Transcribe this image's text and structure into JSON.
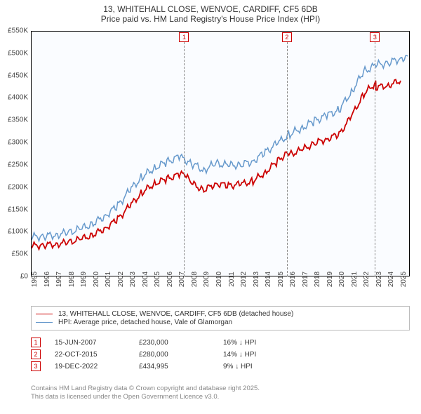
{
  "title": {
    "line1": "13, WHITEHALL CLOSE, WENVOE, CARDIFF, CF5 6DB",
    "line2": "Price paid vs. HM Land Registry's House Price Index (HPI)"
  },
  "chart": {
    "type": "line",
    "background_color": "#fafcff",
    "grid_color": "#b8b8b8",
    "border_color": "#000000",
    "ylim": [
      0,
      550000
    ],
    "ytick_step": 50000,
    "ytick_labels": [
      "£0",
      "£50K",
      "£100K",
      "£150K",
      "£200K",
      "£250K",
      "£300K",
      "£350K",
      "£400K",
      "£450K",
      "£500K",
      "£550K"
    ],
    "x_start_year": 1995,
    "x_end_year": 2025.8,
    "xtick_labels": [
      "1995",
      "1996",
      "1997",
      "1998",
      "1999",
      "2000",
      "2001",
      "2002",
      "2003",
      "2004",
      "2005",
      "2006",
      "2007",
      "2008",
      "2009",
      "2010",
      "2011",
      "2012",
      "2013",
      "2014",
      "2015",
      "2016",
      "2017",
      "2018",
      "2019",
      "2020",
      "2021",
      "2022",
      "2023",
      "2024",
      "2025"
    ],
    "series": [
      {
        "name": "price_paid",
        "color": "#cc0000",
        "width": 1.8,
        "label": "13, WHITEHALL CLOSE, WENVOE, CARDIFF, CF5 6DB (detached house)",
        "data": [
          [
            1995,
            70000
          ],
          [
            1996,
            72000
          ],
          [
            1997,
            74000
          ],
          [
            1998,
            78000
          ],
          [
            1999,
            85000
          ],
          [
            2000,
            95000
          ],
          [
            2001,
            110000
          ],
          [
            2002,
            130000
          ],
          [
            2003,
            160000
          ],
          [
            2004,
            190000
          ],
          [
            2005,
            210000
          ],
          [
            2006,
            220000
          ],
          [
            2007,
            230000
          ],
          [
            2007.46,
            230000
          ],
          [
            2008,
            210000
          ],
          [
            2009,
            195000
          ],
          [
            2010,
            210000
          ],
          [
            2011,
            205000
          ],
          [
            2012,
            208000
          ],
          [
            2013,
            215000
          ],
          [
            2014,
            235000
          ],
          [
            2015,
            260000
          ],
          [
            2015.81,
            280000
          ],
          [
            2016,
            275000
          ],
          [
            2017,
            285000
          ],
          [
            2018,
            300000
          ],
          [
            2019,
            310000
          ],
          [
            2020,
            320000
          ],
          [
            2021,
            360000
          ],
          [
            2022,
            410000
          ],
          [
            2022.97,
            434995
          ],
          [
            2023,
            425000
          ],
          [
            2024,
            430000
          ],
          [
            2025,
            440000
          ]
        ]
      },
      {
        "name": "hpi",
        "color": "#6699cc",
        "width": 1.5,
        "label": "HPI: Average price, detached house, Vale of Glamorgan",
        "data": [
          [
            1995,
            90000
          ],
          [
            1996,
            92000
          ],
          [
            1997,
            95000
          ],
          [
            1998,
            100000
          ],
          [
            1999,
            108000
          ],
          [
            2000,
            120000
          ],
          [
            2001,
            138000
          ],
          [
            2002,
            160000
          ],
          [
            2003,
            195000
          ],
          [
            2004,
            225000
          ],
          [
            2005,
            245000
          ],
          [
            2006,
            258000
          ],
          [
            2007,
            270000
          ],
          [
            2008,
            255000
          ],
          [
            2009,
            240000
          ],
          [
            2010,
            255000
          ],
          [
            2011,
            250000
          ],
          [
            2012,
            252000
          ],
          [
            2013,
            260000
          ],
          [
            2014,
            280000
          ],
          [
            2015,
            300000
          ],
          [
            2016,
            320000
          ],
          [
            2017,
            335000
          ],
          [
            2018,
            350000
          ],
          [
            2019,
            362000
          ],
          [
            2020,
            375000
          ],
          [
            2021,
            415000
          ],
          [
            2022,
            460000
          ],
          [
            2023,
            475000
          ],
          [
            2024,
            480000
          ],
          [
            2025,
            490000
          ],
          [
            2025.6,
            495000
          ]
        ]
      }
    ],
    "markers": [
      {
        "n": "1",
        "year": 2007.46,
        "date": "15-JUN-2007",
        "price": "£230,000",
        "delta": "16% ↓ HPI"
      },
      {
        "n": "2",
        "year": 2015.81,
        "date": "22-OCT-2015",
        "price": "£280,000",
        "delta": "14% ↓ HPI"
      },
      {
        "n": "3",
        "year": 2022.97,
        "date": "19-DEC-2022",
        "price": "£434,995",
        "delta": "9% ↓ HPI"
      }
    ]
  },
  "footer": {
    "line1": "Contains HM Land Registry data © Crown copyright and database right 2025.",
    "line2": "This data is licensed under the Open Government Licence v3.0."
  }
}
